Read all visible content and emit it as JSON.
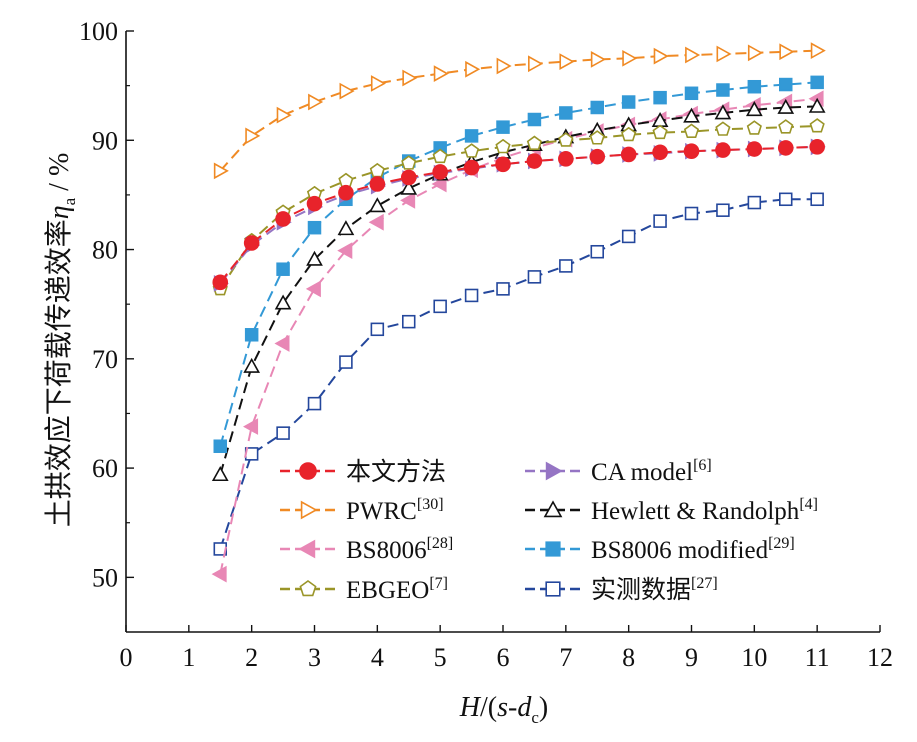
{
  "chart_data": {
    "type": "line",
    "xlabel_parts": {
      "H": "H",
      "sep": "/(",
      "s": "s",
      "dash": "-",
      "d": "d",
      "sub": "c",
      "close": ")"
    },
    "ylabel_parts": {
      "text": "土拱效应下荷载传递效率",
      "eta": "η",
      "sub": "a",
      "unit": " / %"
    },
    "xlim": [
      0,
      12
    ],
    "ylim": [
      45,
      100
    ],
    "xticks": [
      "0",
      "1",
      "2",
      "3",
      "4",
      "5",
      "6",
      "7",
      "8",
      "9",
      "10",
      "11",
      "12"
    ],
    "yticks": [
      "50",
      "60",
      "70",
      "80",
      "90",
      "100"
    ],
    "grid": false,
    "legend_position": "bottom-center",
    "series": [
      {
        "name": "本文方法",
        "ref": "",
        "color": "#e8232b",
        "marker": "circle-filled",
        "x": [
          1.5,
          2,
          2.5,
          3,
          3.5,
          4,
          4.5,
          5,
          5.5,
          6,
          6.5,
          7,
          7.5,
          8,
          8.5,
          9,
          9.5,
          10,
          10.5,
          11
        ],
        "y": [
          77.0,
          80.6,
          82.8,
          84.2,
          85.2,
          86.0,
          86.6,
          87.1,
          87.5,
          87.8,
          88.1,
          88.3,
          88.5,
          88.7,
          88.9,
          89.0,
          89.1,
          89.2,
          89.3,
          89.4
        ]
      },
      {
        "name": "PWRC",
        "ref": "[30]",
        "color": "#f08a24",
        "marker": "triangle-right-open",
        "x": [
          1.5,
          2,
          2.5,
          3,
          3.5,
          4,
          4.5,
          5,
          5.5,
          6,
          6.5,
          7,
          7.5,
          8,
          8.5,
          9,
          9.5,
          10,
          10.5,
          11
        ],
        "y": [
          87.2,
          90.4,
          92.3,
          93.5,
          94.5,
          95.2,
          95.7,
          96.1,
          96.5,
          96.8,
          97.0,
          97.2,
          97.4,
          97.5,
          97.7,
          97.8,
          97.9,
          98.0,
          98.1,
          98.2
        ]
      },
      {
        "name": "BS8006",
        "ref": "[28]",
        "color": "#e887b5",
        "marker": "triangle-left-filled",
        "x": [
          1.5,
          2,
          2.5,
          3,
          3.5,
          4,
          4.5,
          5,
          5.5,
          6,
          6.5,
          7,
          7.5,
          8,
          8.5,
          9,
          9.5,
          10,
          10.5,
          11
        ],
        "y": [
          50.3,
          63.8,
          71.4,
          76.4,
          79.9,
          82.5,
          84.5,
          86.0,
          87.3,
          88.4,
          89.3,
          90.1,
          90.8,
          91.4,
          91.9,
          92.4,
          92.8,
          93.2,
          93.5,
          93.8
        ]
      },
      {
        "name": "EBGEO",
        "ref": "[7]",
        "color": "#9a9528",
        "marker": "pentagon-open",
        "x": [
          1.5,
          2,
          2.5,
          3,
          3.5,
          4,
          4.5,
          5,
          5.5,
          6,
          6.5,
          7,
          7.5,
          8,
          8.5,
          9,
          9.5,
          10,
          10.5,
          11
        ],
        "y": [
          76.4,
          80.8,
          83.4,
          85.1,
          86.3,
          87.2,
          87.9,
          88.5,
          89.0,
          89.4,
          89.7,
          90.0,
          90.2,
          90.5,
          90.7,
          90.8,
          91.0,
          91.1,
          91.2,
          91.3
        ]
      },
      {
        "name": "CA model",
        "ref": "[6]",
        "color": "#9575c4",
        "marker": "triangle-right-filled",
        "x": [
          1.5,
          2,
          2.5,
          3,
          3.5,
          4,
          4.5,
          5,
          5.5,
          6,
          6.5,
          7,
          7.5,
          8,
          8.5,
          9,
          9.5,
          10,
          10.5,
          11
        ],
        "y": [
          76.9,
          80.4,
          82.5,
          83.9,
          85.0,
          85.8,
          86.5,
          87.0,
          87.4,
          87.8,
          88.1,
          88.3,
          88.5,
          88.7,
          88.8,
          89.0,
          89.1,
          89.2,
          89.3,
          89.4
        ]
      },
      {
        "name": "Hewlett & Randolph",
        "ref": "[4]",
        "color": "#111111",
        "marker": "triangle-up-open",
        "x": [
          1.5,
          2,
          2.5,
          3,
          3.5,
          4,
          4.5,
          5,
          5.5,
          6,
          6.5,
          7,
          7.5,
          8,
          8.5,
          9,
          9.5,
          10,
          10.5,
          11
        ],
        "y": [
          59.4,
          69.3,
          75.1,
          79.1,
          81.9,
          84.0,
          85.6,
          86.9,
          88.0,
          88.9,
          89.6,
          90.3,
          90.9,
          91.4,
          91.8,
          92.2,
          92.5,
          92.8,
          93.0,
          93.1
        ]
      },
      {
        "name": "BS8006 modified",
        "ref": "[29]",
        "color": "#3399d6",
        "marker": "square-filled",
        "x": [
          1.5,
          2,
          2.5,
          3,
          3.5,
          4,
          4.5,
          5,
          5.5,
          6,
          6.5,
          7,
          7.5,
          8,
          8.5,
          9,
          9.5,
          10,
          10.5,
          11
        ],
        "y": [
          62.0,
          72.2,
          78.2,
          82.0,
          84.6,
          86.6,
          88.1,
          89.3,
          90.4,
          91.2,
          91.9,
          92.5,
          93.0,
          93.5,
          93.9,
          94.3,
          94.6,
          94.9,
          95.1,
          95.3
        ]
      },
      {
        "name": "实测数据",
        "ref": "[27]",
        "color": "#24479c",
        "marker": "square-open",
        "x": [
          1.5,
          2,
          2.5,
          3,
          3.5,
          4,
          4.5,
          5,
          5.5,
          6,
          6.5,
          7,
          7.5,
          8,
          8.5,
          9,
          9.5,
          10,
          10.5,
          11
        ],
        "y": [
          52.6,
          61.3,
          63.2,
          65.9,
          69.7,
          72.7,
          73.4,
          74.8,
          75.8,
          76.4,
          77.5,
          78.5,
          79.8,
          81.2,
          82.6,
          83.3,
          83.6,
          84.3,
          84.6,
          84.6
        ]
      }
    ]
  }
}
